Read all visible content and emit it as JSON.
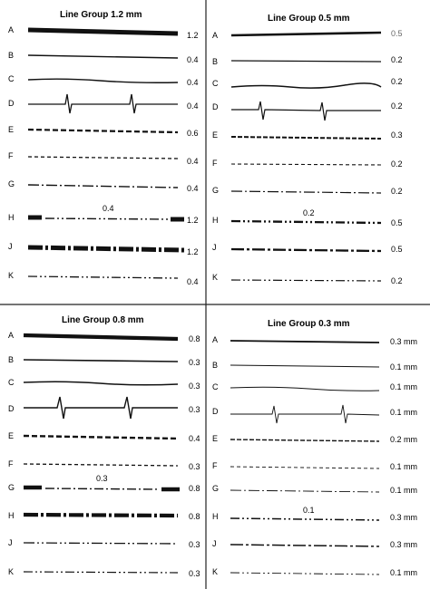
{
  "panels": [
    {
      "title": "Line Group 1.2 mm",
      "rows": [
        {
          "code": "A",
          "value": "1.2"
        },
        {
          "code": "B",
          "value": "0.4"
        },
        {
          "code": "C",
          "value": "0.4"
        },
        {
          "code": "D",
          "value": "0.4"
        },
        {
          "code": "E",
          "value": "0.6"
        },
        {
          "code": "F",
          "value": "0.4"
        },
        {
          "code": "G",
          "value": "0.4"
        },
        {
          "code": "H",
          "value": "1.2",
          "inline_label": "0.4"
        },
        {
          "code": "J",
          "value": "1.2"
        },
        {
          "code": "K",
          "value": "0.4"
        }
      ]
    },
    {
      "title": "Line Group 0.5 mm",
      "rows": [
        {
          "code": "A",
          "value": "0.5"
        },
        {
          "code": "B",
          "value": "0.2"
        },
        {
          "code": "C",
          "value": "0.2"
        },
        {
          "code": "D",
          "value": "0.2"
        },
        {
          "code": "E",
          "value": "0.3"
        },
        {
          "code": "F",
          "value": "0.2"
        },
        {
          "code": "G",
          "value": "0.2"
        },
        {
          "code": "H",
          "value": "0.5",
          "inline_label": "0.2"
        },
        {
          "code": "J",
          "value": "0.5"
        },
        {
          "code": "K",
          "value": "0.2"
        }
      ]
    },
    {
      "title": "Line Group 0.8 mm",
      "rows": [
        {
          "code": "A",
          "value": "0.8"
        },
        {
          "code": "B",
          "value": "0.3"
        },
        {
          "code": "C",
          "value": "0.3"
        },
        {
          "code": "D",
          "value": "0.3"
        },
        {
          "code": "E",
          "value": "0.4"
        },
        {
          "code": "F",
          "value": "0.3"
        },
        {
          "code": "G",
          "value": "0.8",
          "inline_label": "0.3"
        },
        {
          "code": "H",
          "value": "0.8"
        },
        {
          "code": "J",
          "value": "0.3"
        },
        {
          "code": "K",
          "value": "0.3"
        }
      ]
    },
    {
      "title": "Line Group 0.3 mm",
      "rows": [
        {
          "code": "A",
          "value": "0.3 mm"
        },
        {
          "code": "B",
          "value": "0.1 mm"
        },
        {
          "code": "C",
          "value": "0.1 mm"
        },
        {
          "code": "D",
          "value": "0.1 mm"
        },
        {
          "code": "E",
          "value": "0.2 mm"
        },
        {
          "code": "F",
          "value": "0.1 mm"
        },
        {
          "code": "G",
          "value": "0.1 mm"
        },
        {
          "code": "H",
          "value": "0.3 mm",
          "inline_label": "0.1"
        },
        {
          "code": "J",
          "value": "0.3 mm"
        },
        {
          "code": "K",
          "value": "0.1 mm"
        }
      ]
    }
  ],
  "colors": {
    "ink": "#111111",
    "paper": "#ffffff"
  }
}
